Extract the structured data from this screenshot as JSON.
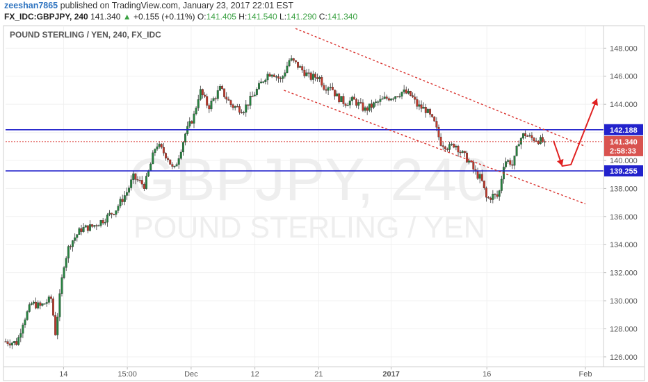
{
  "header": {
    "user": "zeeshan7865",
    "published": "published on TradingView.com, January 23, 2017 22:01 EST",
    "symbol": "FX_IDC:GBPJPY, 240",
    "price": "141.340",
    "change_arrow": "▲",
    "change": "+0.155 (+0.11%)",
    "o_label": "O:",
    "o": "141.405",
    "h_label": "H:",
    "h": "141.540",
    "l_label": "L:",
    "l": "141.290",
    "c_label": "C:",
    "c": "141.340"
  },
  "watermark": {
    "line1": "GBPJPY, 240",
    "line2": "POUND STERLING / YEN"
  },
  "chart_data": {
    "type": "candlestick",
    "title": "POUND STERLING / YEN, 240, FX_IDC",
    "y_ticks": [
      "148.000",
      "146.000",
      "144.000",
      "142.000",
      "140.000",
      "138.000",
      "136.000",
      "134.000",
      "132.000",
      "130.000",
      "128.000",
      "126.000"
    ],
    "ylim": [
      125.3,
      149.6
    ],
    "x_ticks": [
      {
        "label": "14",
        "x": 0.1
      },
      {
        "label": "15:00",
        "x": 0.21
      },
      {
        "label": "Dec",
        "x": 0.32
      },
      {
        "label": "12",
        "x": 0.43
      },
      {
        "label": "21",
        "x": 0.54
      },
      {
        "label": "2017",
        "x": 0.665,
        "bold": true
      },
      {
        "label": "16",
        "x": 0.83
      },
      {
        "label": "Feb",
        "x": 1.0
      }
    ],
    "price_path": [
      [
        0,
        127.1
      ],
      [
        0.02,
        127.0
      ],
      [
        0.03,
        128.5
      ],
      [
        0.045,
        129.8
      ],
      [
        0.06,
        129.6
      ],
      [
        0.08,
        130.2
      ],
      [
        0.085,
        127.4
      ],
      [
        0.1,
        132.5
      ],
      [
        0.11,
        134.0
      ],
      [
        0.13,
        135.1
      ],
      [
        0.15,
        135.3
      ],
      [
        0.17,
        135.8
      ],
      [
        0.19,
        136.5
      ],
      [
        0.21,
        137.8
      ],
      [
        0.22,
        138.8
      ],
      [
        0.24,
        138.2
      ],
      [
        0.26,
        141.2
      ],
      [
        0.28,
        140.2
      ],
      [
        0.29,
        139.2
      ],
      [
        0.3,
        140.5
      ],
      [
        0.31,
        141.9
      ],
      [
        0.325,
        143.2
      ],
      [
        0.335,
        145.0
      ],
      [
        0.35,
        143.8
      ],
      [
        0.37,
        145.1
      ],
      [
        0.39,
        143.9
      ],
      [
        0.41,
        143.6
      ],
      [
        0.43,
        144.8
      ],
      [
        0.45,
        146.1
      ],
      [
        0.46,
        146.3
      ],
      [
        0.475,
        145.7
      ],
      [
        0.49,
        147.2
      ],
      [
        0.5,
        146.9
      ],
      [
        0.51,
        146.5
      ],
      [
        0.525,
        145.9
      ],
      [
        0.54,
        146.0
      ],
      [
        0.55,
        145.2
      ],
      [
        0.56,
        145.4
      ],
      [
        0.57,
        144.6
      ],
      [
        0.585,
        144.1
      ],
      [
        0.6,
        144.3
      ],
      [
        0.62,
        143.6
      ],
      [
        0.64,
        144.1
      ],
      [
        0.655,
        144.4
      ],
      [
        0.67,
        144.6
      ],
      [
        0.685,
        144.9
      ],
      [
        0.7,
        144.6
      ],
      [
        0.71,
        143.9
      ],
      [
        0.725,
        143.6
      ],
      [
        0.74,
        142.6
      ],
      [
        0.75,
        141.3
      ],
      [
        0.765,
        140.9
      ],
      [
        0.775,
        141.2
      ],
      [
        0.785,
        140.6
      ],
      [
        0.8,
        139.9
      ],
      [
        0.81,
        139.1
      ],
      [
        0.82,
        138.7
      ],
      [
        0.83,
        137.2
      ],
      [
        0.84,
        137.5
      ],
      [
        0.85,
        137.4
      ],
      [
        0.86,
        140.0
      ],
      [
        0.87,
        139.9
      ],
      [
        0.875,
        139.6
      ],
      [
        0.885,
        141.4
      ],
      [
        0.895,
        141.9
      ],
      [
        0.905,
        141.6
      ],
      [
        0.915,
        141.5
      ],
      [
        0.93,
        141.3
      ]
    ],
    "current_price": 141.34,
    "countdown": "2:58:33",
    "levels": [
      {
        "price": 142.188,
        "label": "142.188",
        "color": "#2222cc"
      },
      {
        "price": 139.255,
        "label": "139.255",
        "color": "#2222cc"
      }
    ],
    "channel": [
      {
        "x1": 0.5,
        "y1": 149.4,
        "x2": 1.0,
        "y2": 141.0
      },
      {
        "x1": 0.48,
        "y1": 145.0,
        "x2": 1.0,
        "y2": 136.9
      }
    ],
    "forecast": [
      [
        0.945,
        141.4
      ],
      [
        0.96,
        139.6
      ],
      [
        0.975,
        139.7
      ],
      [
        1.02,
        144.4
      ]
    ],
    "colors": {
      "up": "#26813f",
      "down": "#c0392b",
      "level": "#2222cc",
      "channel": "#d9302c",
      "forecast": "#e02020",
      "price_tag": "#d9534f",
      "axis_text": "#555555",
      "grid": "#f0f0f0"
    }
  }
}
